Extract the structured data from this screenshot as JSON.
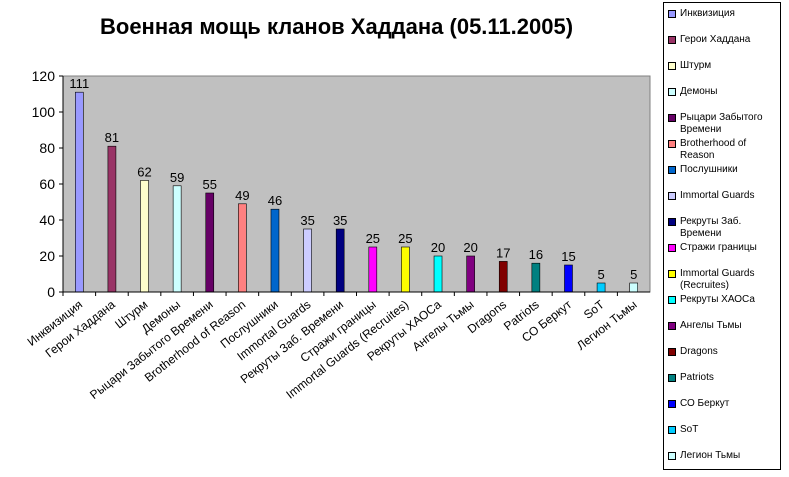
{
  "chart_data": {
    "type": "bar",
    "title": "Военная мощь кланов Хаддана (05.11.2005)",
    "xlabel": "",
    "ylabel": "",
    "ylim": [
      0,
      120
    ],
    "yticks": [
      0,
      20,
      40,
      60,
      80,
      100,
      120
    ],
    "grid": false,
    "plot_background": "#c0c0c0",
    "legend_placement": "right",
    "categories": [
      "Инквизиция",
      "Герои Хаддана",
      "Штурм",
      "Демоны",
      "Рыцари Забытого Времени",
      "Brotherhood of Reason",
      "Послушники",
      "Immortal Guards",
      "Рекруты Заб. Времени",
      "Стражи границы",
      "Immortal Guards (Recruites)",
      "Рекруты ХАОСа",
      "Ангелы Тьмы",
      "Dragons",
      "Patriots",
      "СО Беркут",
      "SoT",
      "Легион Тьмы"
    ],
    "values": [
      111,
      81,
      62,
      59,
      55,
      49,
      46,
      35,
      35,
      25,
      25,
      20,
      20,
      17,
      16,
      15,
      5,
      5
    ],
    "legend_labels": [
      "Инквизиция",
      "Герои Хаддана",
      "Штурм",
      "Демоны",
      "Рыцари Забытого Времени",
      "Brotherhood of Reason",
      "Послушники",
      "Immortal Guards",
      "Рекруты Заб. Времени",
      "Стражи границы",
      "Immortal Guards (Recruites)",
      "Рекруты ХАОСа",
      "Ангелы Тьмы",
      "Dragons",
      "Patriots",
      "СО Беркут",
      "SoT",
      "Легион Тьмы"
    ],
    "colors": [
      "#9999ff",
      "#993366",
      "#ffffcc",
      "#ccffff",
      "#660066",
      "#ff8080",
      "#0066cc",
      "#ccccff",
      "#000080",
      "#ff00ff",
      "#ffff00",
      "#00ffff",
      "#800080",
      "#800000",
      "#008080",
      "#0000ff",
      "#00ccff",
      "#ccffff"
    ]
  }
}
